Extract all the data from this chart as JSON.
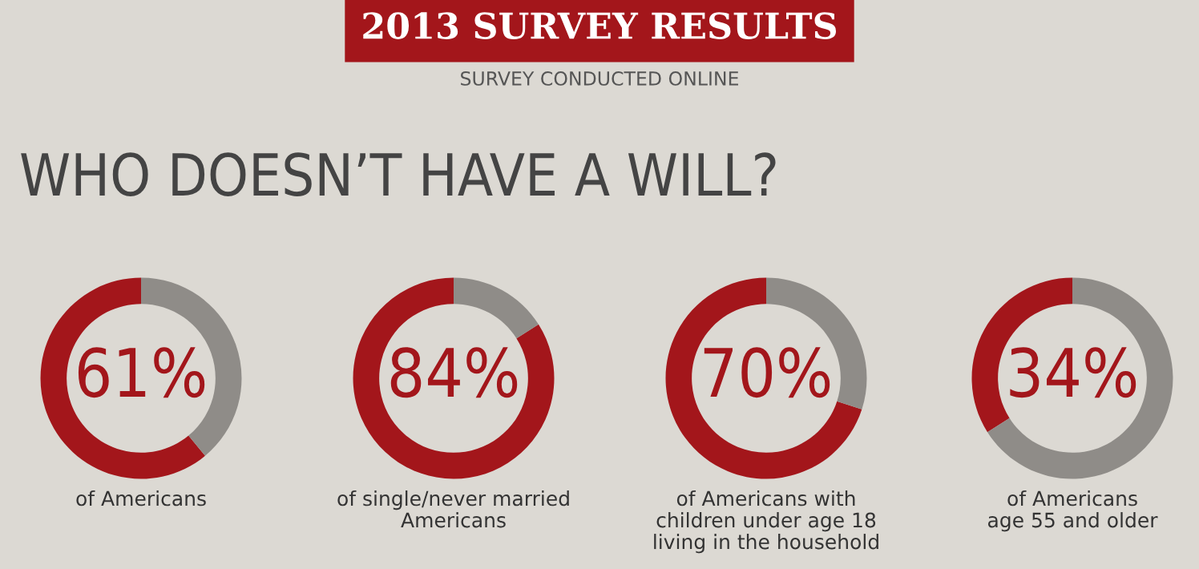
{
  "chart_data": [
    {
      "type": "donut",
      "title": "2013 SURVEY RESULTS",
      "subtitle": "SURVEY CONDUCTED ONLINE",
      "annotations": [
        "WHO DOESN’T HAVE A WILL?"
      ],
      "categories": [
        null,
        null
      ],
      "values": [
        61,
        39
      ],
      "colors": [
        "#a3161b",
        "#8f8c88"
      ],
      "value_labels": [
        "61%",
        null
      ],
      "xlabel": "of Americans"
    },
    {
      "type": "donut",
      "categories": [
        null,
        null
      ],
      "values": [
        84,
        16
      ],
      "colors": [
        "#a3161b",
        "#8f8c88"
      ],
      "value_labels": [
        "84%",
        null
      ],
      "xlabel": "of single/never married\nAmericans"
    },
    {
      "type": "donut",
      "categories": [
        null,
        null
      ],
      "values": [
        70,
        30
      ],
      "colors": [
        "#a3161b",
        "#8f8c88"
      ],
      "value_labels": [
        "70%",
        null
      ],
      "xlabel": "of Americans with\nchildren under age 18\nliving in the household"
    },
    {
      "type": "donut",
      "categories": [
        null,
        null
      ],
      "values": [
        34,
        66
      ],
      "colors": [
        "#a3161b",
        "#8f8c88"
      ],
      "value_labels": [
        "34%",
        null
      ],
      "xlabel": "of Americans\nage 55 and older"
    }
  ]
}
